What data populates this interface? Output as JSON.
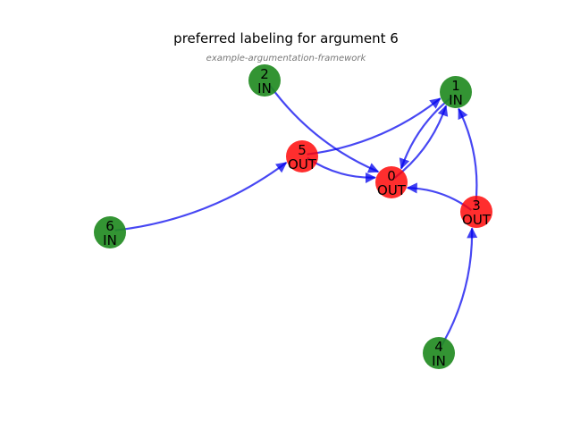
{
  "title": "preferred labeling for argument 6",
  "subtitle": "example-argumentation-framework",
  "colors": {
    "in": "#228B22",
    "out": "#FF0000",
    "edge": "#0000EE"
  },
  "nodes": [
    {
      "id": "0",
      "label": "OUT"
    },
    {
      "id": "1",
      "label": "IN"
    },
    {
      "id": "2",
      "label": "IN"
    },
    {
      "id": "3",
      "label": "OUT"
    },
    {
      "id": "4",
      "label": "IN"
    },
    {
      "id": "5",
      "label": "OUT"
    },
    {
      "id": "6",
      "label": "IN"
    }
  ],
  "edges": [
    {
      "from": "2",
      "to": "0"
    },
    {
      "from": "5",
      "to": "0"
    },
    {
      "from": "5",
      "to": "1"
    },
    {
      "from": "1",
      "to": "0"
    },
    {
      "from": "0",
      "to": "1"
    },
    {
      "from": "3",
      "to": "0"
    },
    {
      "from": "3",
      "to": "1"
    },
    {
      "from": "4",
      "to": "3"
    },
    {
      "from": "6",
      "to": "5"
    }
  ]
}
